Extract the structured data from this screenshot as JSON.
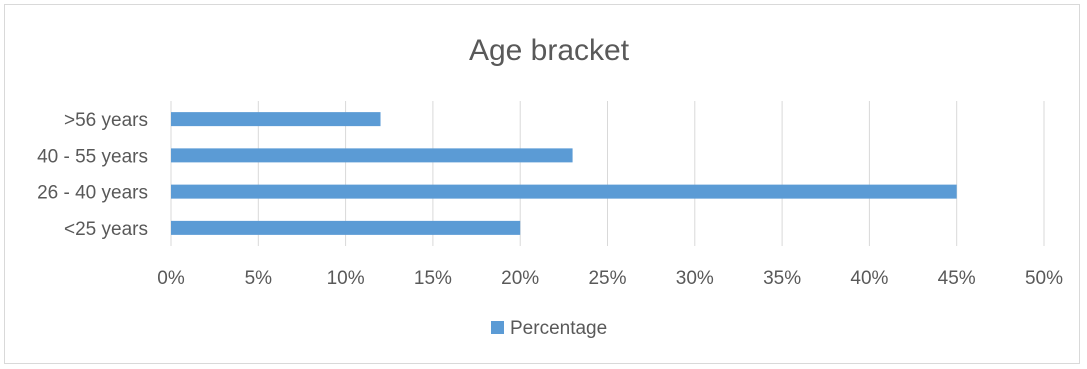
{
  "chart_data": {
    "type": "bar",
    "orientation": "horizontal",
    "title": "Age bracket",
    "categories": [
      "<25 years",
      "26 - 40 years",
      "40 - 55 years",
      ">56 years"
    ],
    "series": [
      {
        "name": "Percentage",
        "values": [
          20,
          45,
          23,
          12
        ],
        "color": "#5b9bd5"
      }
    ],
    "xlim": [
      0,
      50
    ],
    "xticks": [
      "0%",
      "5%",
      "10%",
      "15%",
      "20%",
      "25%",
      "30%",
      "35%",
      "40%",
      "45%",
      "50%"
    ],
    "grid": true,
    "legend_position": "bottom"
  }
}
